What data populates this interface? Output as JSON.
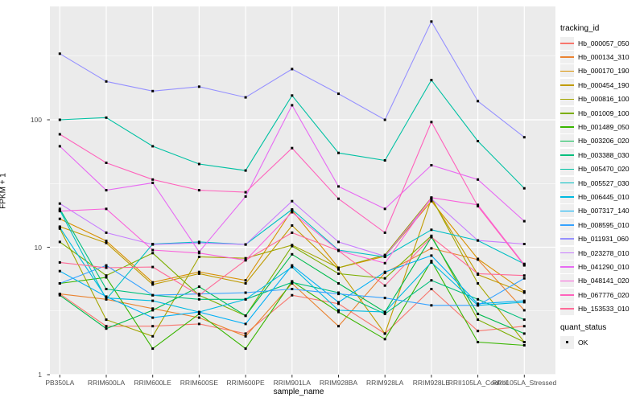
{
  "chart_data": {
    "type": "line",
    "title": "",
    "xlabel": "sample_name",
    "ylabel": "FPKM + 1",
    "y_scale": "log10",
    "ylim": [
      1,
      700
    ],
    "y_ticks": [
      1,
      10,
      100
    ],
    "y_tick_labels": [
      "1",
      "10",
      "100"
    ],
    "y_minor_ticks": [
      3.162,
      31.62,
      316.2
    ],
    "grid": true,
    "legend_position": "right",
    "legend_title": "tracking_id",
    "point_marker": "filled-black-square",
    "quant_legend": {
      "title": "quant_status",
      "items": [
        "OK"
      ]
    },
    "categories": [
      "PB350LA",
      "RRIM600LA",
      "RRIM600LE",
      "RRIM600SE",
      "RRIM600PE",
      "RRIM901LA",
      "RRIM928BA",
      "RRIM928LA",
      "RRIM928LE",
      "RRII105LA_Control",
      "RRII105LA_Stressed"
    ],
    "series": [
      {
        "name": "Hb_000057_050",
        "color": "#F8766D",
        "values": [
          4.3,
          2.4,
          2.4,
          2.5,
          2.1,
          4.2,
          3.6,
          2.1,
          4.7,
          2.2,
          2.4
        ]
      },
      {
        "name": "Hb_000134_310",
        "color": "#EA8331",
        "values": [
          4.3,
          3.9,
          3.3,
          2.8,
          2.0,
          5.2,
          2.4,
          6.3,
          9.8,
          8.0,
          3.2
        ]
      },
      {
        "name": "Hb_000170_190",
        "color": "#D89000",
        "values": [
          16.7,
          11.2,
          5.3,
          6.4,
          5.5,
          19.5,
          6.9,
          8.5,
          23.0,
          8.1,
          4.5
        ]
      },
      {
        "name": "Hb_000454_190",
        "color": "#C09B00",
        "values": [
          14.5,
          10.8,
          5.1,
          6.2,
          5.2,
          14.8,
          6.7,
          2.1,
          24.0,
          6.1,
          4.4
        ]
      },
      {
        "name": "Hb_000816_100",
        "color": "#A3A500",
        "values": [
          14.0,
          2.7,
          2.0,
          8.4,
          8.2,
          10.4,
          6.9,
          8.7,
          24.5,
          5.2,
          1.8
        ]
      },
      {
        "name": "Hb_001009_100",
        "color": "#7CAE00",
        "values": [
          11.0,
          6.0,
          9.0,
          4.2,
          2.9,
          10.2,
          6.2,
          5.7,
          12.3,
          2.7,
          1.8
        ]
      },
      {
        "name": "Hb_001489_050",
        "color": "#39B600",
        "values": [
          5.2,
          5.8,
          1.6,
          3.0,
          1.6,
          5.4,
          3.1,
          1.9,
          7.8,
          1.8,
          1.7
        ]
      },
      {
        "name": "Hb_003206_020",
        "color": "#00BB4E",
        "values": [
          4.2,
          2.3,
          3.2,
          4.9,
          2.9,
          8.8,
          5.2,
          3.1,
          12.0,
          3.0,
          2.1
        ]
      },
      {
        "name": "Hb_003388_030",
        "color": "#00BF7D",
        "values": [
          20.0,
          4.7,
          4.2,
          3.9,
          3.9,
          5.3,
          4.4,
          3.0,
          5.5,
          3.9,
          2.7
        ]
      },
      {
        "name": "Hb_005470_020",
        "color": "#00C1A3",
        "values": [
          100,
          104,
          62,
          45,
          40,
          155,
          55,
          48,
          205,
          68,
          29
        ]
      },
      {
        "name": "Hb_005527_030",
        "color": "#00BFC4",
        "values": [
          19.5,
          3.9,
          10.6,
          11.0,
          10.5,
          19.8,
          9.5,
          8.4,
          13.7,
          11.3,
          7.4
        ]
      },
      {
        "name": "Hb_006445_010",
        "color": "#00BAE0",
        "values": [
          14.3,
          4.0,
          3.8,
          3.1,
          3.9,
          7.0,
          3.2,
          3.1,
          7.6,
          3.5,
          3.7
        ]
      },
      {
        "name": "Hb_007317_140",
        "color": "#00B0F6",
        "values": [
          6.5,
          4.1,
          2.8,
          3.1,
          2.5,
          7.2,
          3.7,
          6.4,
          8.6,
          3.6,
          3.8
        ]
      },
      {
        "name": "Hb_008595_010",
        "color": "#35A2FF",
        "values": [
          5.2,
          7.2,
          4.2,
          4.3,
          4.4,
          4.7,
          4.3,
          4.0,
          3.5,
          3.5,
          5.7
        ]
      },
      {
        "name": "Hb_011931_060",
        "color": "#9590FF",
        "values": [
          330,
          200,
          168,
          182,
          150,
          250,
          160,
          100,
          590,
          140,
          73
        ]
      },
      {
        "name": "Hb_023278_010",
        "color": "#C77CFF",
        "values": [
          22,
          13,
          10.5,
          10.8,
          10.5,
          23,
          11.0,
          8.5,
          24,
          11.3,
          10.6
        ]
      },
      {
        "name": "Hb_041290_010",
        "color": "#E76BF3",
        "values": [
          62,
          28,
          32,
          9.2,
          25,
          130,
          30,
          20,
          44,
          34,
          16
        ]
      },
      {
        "name": "Hb_048141_020",
        "color": "#FA62DB",
        "values": [
          19.2,
          20,
          9.5,
          9.0,
          7.9,
          18.8,
          9.4,
          7.5,
          24.5,
          21.5,
          7.3
        ]
      },
      {
        "name": "Hb_067776_020",
        "color": "#FF62BC",
        "values": [
          77,
          46,
          34,
          28,
          27,
          60,
          24,
          13,
          96,
          21,
          7.2
        ]
      },
      {
        "name": "Hb_153533_010",
        "color": "#FF6A98",
        "values": [
          7.6,
          6.9,
          7.0,
          4.2,
          7.9,
          13.0,
          9.4,
          5.0,
          12.0,
          6.2,
          6.0
        ]
      }
    ]
  },
  "colors": {
    "panel_bg": "#EBEBEB",
    "grid": "#FFFFFF",
    "tick_text": "#4D4D4D",
    "axis_title_text": "#000000",
    "legend_key_bg": "#EFEFEF",
    "point": "#000000"
  }
}
